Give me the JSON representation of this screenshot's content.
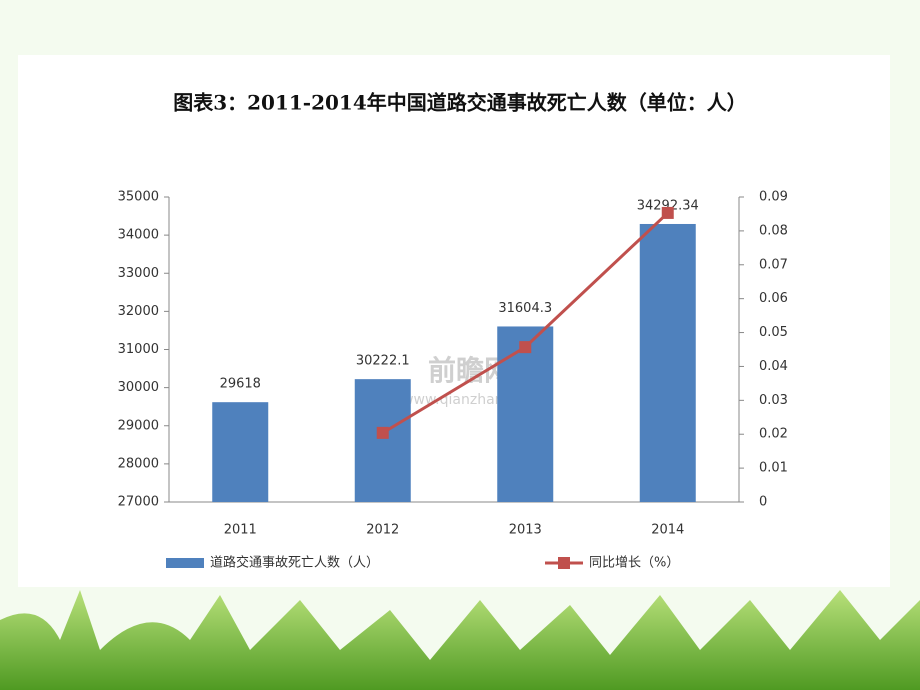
{
  "chart_data": {
    "type": "bar-line",
    "title": "图表3：2011-2014年中国道路交通事故死亡人数（单位：人）",
    "categories": [
      "2011",
      "2012",
      "2013",
      "2014"
    ],
    "series": [
      {
        "name": "道路交通事故死亡人数（人）",
        "type": "bar",
        "color": "#4f81bd",
        "values": [
          29618,
          30222.1,
          31604.3,
          34292.34
        ]
      },
      {
        "name": "同比增长（%）",
        "type": "line",
        "axis": "y2",
        "color": "#c0504d",
        "values": [
          null,
          0.0204,
          0.0457,
          0.0853
        ]
      }
    ],
    "ylim": [
      27000,
      35000
    ],
    "yticks": [
      27000,
      28000,
      29000,
      30000,
      31000,
      32000,
      33000,
      34000,
      35000
    ],
    "y2lim": [
      0,
      0.09
    ],
    "y2ticks": [
      0,
      0.01,
      0.02,
      0.03,
      0.04,
      0.05,
      0.06,
      0.07,
      0.08,
      0.09
    ],
    "legend": "bottom",
    "watermark": {
      "brand": "前瞻网",
      "site": "www.qianzhan.com"
    }
  }
}
